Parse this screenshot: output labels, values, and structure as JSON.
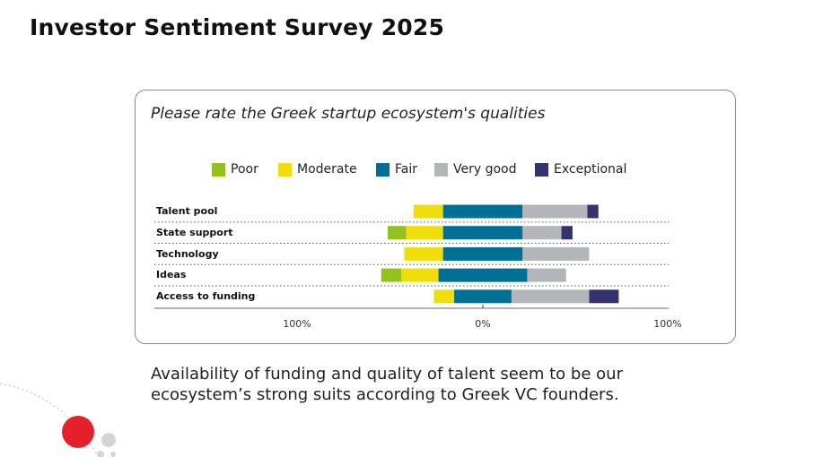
{
  "page_title": "Investor Sentiment Survey 2025",
  "caption_lines": [
    "Availability of funding and quality of talent seem to be our",
    "ecosystem’s strong suits according to Greek VC founders."
  ],
  "chart_data": {
    "type": "bar",
    "subtype": "diverging-stacked-horizontal",
    "title": "Please rate the Greek startup ecosystem's qualities",
    "legend": [
      "Poor",
      "Moderate",
      "Fair",
      "Very good",
      "Exceptional"
    ],
    "legend_placement": "top",
    "colors": [
      "#95c11f",
      "#f0de0b",
      "#006f94",
      "#b3b5b8",
      "#35336d"
    ],
    "categories": [
      "Talent pool",
      "State support",
      "Technology",
      "Ideas",
      "Access to funding"
    ],
    "series": [
      {
        "name": "Poor",
        "values": [
          0,
          10,
          0,
          11,
          0
        ]
      },
      {
        "name": "Moderate",
        "values": [
          16,
          20,
          21,
          20,
          11
        ]
      },
      {
        "name": "Fair",
        "values": [
          43,
          43,
          43,
          48,
          31
        ]
      },
      {
        "name": "Very good",
        "values": [
          35,
          21,
          36,
          21,
          42
        ]
      },
      {
        "name": "Exceptional",
        "values": [
          6,
          6,
          0,
          0,
          16
        ]
      }
    ],
    "xlim": [
      -100,
      100
    ],
    "x_tick_labels": [
      "100%",
      "0%",
      "100%"
    ],
    "grid": false
  }
}
